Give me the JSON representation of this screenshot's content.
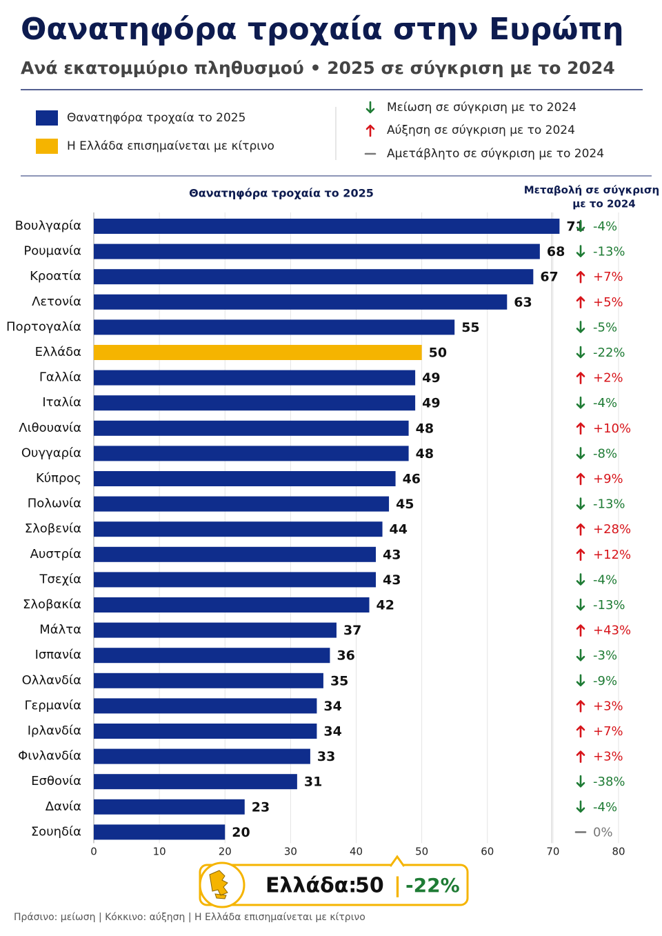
{
  "title": "Θανατηφόρα τροχαία στην Ευρώπη",
  "subtitle": "Ανά εκατομμύριο πληθυσμού • 2025 σε σύγκριση με το 2024",
  "legend": {
    "highlight_label": "Η Ελλάδα επισημαίνεται με κίτρινο",
    "highlight_color": "#f5b400",
    "decrease_label": "Μείωση σε σύγκριση με το 2024",
    "increase_label": "Αύξηση σε σύγκριση με το 2024",
    "unchanged_label": "Αμετάβλητο σε σύγκριση με το 2024"
  },
  "chart_data": {
    "type": "bar",
    "orientation": "horizontal",
    "bar_title": "Θανατηφόρα τροχαία το 2025",
    "categories": [
      "Βουλγαρία",
      "Ρουμανία",
      "Κροατία",
      "Λετονία",
      "Πορτογαλία",
      "Ελλάδα",
      "Γαλλία",
      "Ιταλία",
      "Λιθουανία",
      "Ουγγαρία",
      "Κύπρος",
      "Πολωνία",
      "Σλοβενία",
      "Αυστρία",
      "Τσεχία",
      "Σλοβακία",
      "Μάλτα",
      "Ισπανία",
      "Ολλανδία",
      "Γερμανία",
      "Ιρλανδία",
      "Φινλανδία",
      "Εσθονία",
      "Δανία",
      "Σουηδία"
    ],
    "series": [
      {
        "name": "Θανατηφόρα τροχαία το 2025",
        "color": "#0f2d8c",
        "colors": [
          "#0f2d8c",
          "#0f2d8c",
          "#0f2d8c",
          "#0f2d8c",
          "#0f2d8c",
          "#f5b400",
          "#0f2d8c",
          "#0f2d8c",
          "#0f2d8c",
          "#0f2d8c",
          "#0f2d8c",
          "#0f2d8c",
          "#0f2d8c",
          "#0f2d8c",
          "#0f2d8c",
          "#0f2d8c",
          "#0f2d8c",
          "#0f2d8c",
          "#0f2d8c",
          "#0f2d8c",
          "#0f2d8c",
          "#0f2d8c",
          "#0f2d8c",
          "#0f2d8c",
          "#0f2d8c"
        ],
        "values": [
          71,
          68,
          67,
          63,
          55,
          50,
          49,
          49,
          48,
          48,
          46,
          45,
          44,
          43,
          43,
          42,
          37,
          36,
          35,
          34,
          34,
          33,
          31,
          23,
          20
        ]
      }
    ],
    "change": {
      "title": [
        "Μεταβολή σε σύγκριση",
        "με το 2024"
      ],
      "values": [
        -4,
        -13,
        7,
        5,
        -5,
        -22,
        2,
        -4,
        10,
        -8,
        9,
        -13,
        28,
        12,
        -4,
        -13,
        43,
        -3,
        -9,
        3,
        7,
        3,
        -38,
        -4,
        0
      ],
      "value_labels": [
        "-4%",
        "-13%",
        "+7%",
        "+5%",
        "-5%",
        "-22%",
        "+2%",
        "-4%",
        "+10%",
        "-8%",
        "+9%",
        "-13%",
        "+28%",
        "+12%",
        "-4%",
        "-13%",
        "+43%",
        "-3%",
        "-9%",
        "+3%",
        "+7%",
        "+3%",
        "-38%",
        "-4%",
        "0%"
      ],
      "decrease_color": "#1e7b34",
      "increase_color": "#d7141a",
      "unchanged_color": "#777777"
    },
    "xlim": [
      0,
      80
    ],
    "xticks": [
      0,
      10,
      20,
      30,
      40,
      50,
      60,
      70,
      80
    ],
    "grid": true
  },
  "callout": {
    "label": "Ελλάδα:",
    "value": 50,
    "change_label": "-22%"
  },
  "footer": "Πράσινο: μείωση | Κόκκινο: αύξηση | Η Ελλάδα επισημαίνεται με κίτρινο"
}
